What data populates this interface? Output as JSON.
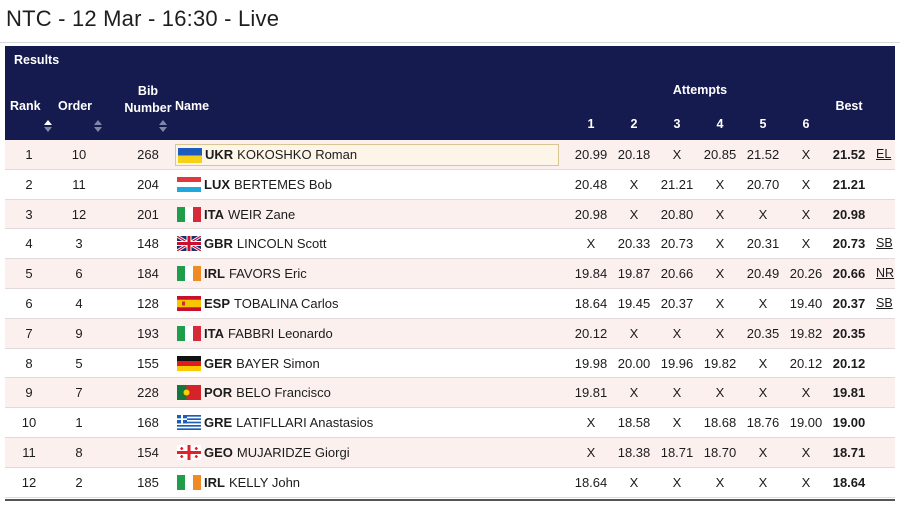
{
  "page": {
    "title": "NTC - 12 Mar - 16:30 - Live"
  },
  "table": {
    "section_label": "Results",
    "headers": {
      "rank": "Rank",
      "order": "Order",
      "bib": "Bib Number",
      "name": "Name",
      "attempts": "Attempts",
      "attempt_numbers": [
        "1",
        "2",
        "3",
        "4",
        "5",
        "6"
      ],
      "best": "Best"
    },
    "rows": [
      {
        "rank": "1",
        "order": "10",
        "bib": "268",
        "noc": "UKR",
        "name": "KOKOSHKO Roman",
        "flag": "ukr",
        "attempts": [
          "20.99",
          "20.18",
          "X",
          "20.85",
          "21.52",
          "X"
        ],
        "best": "21.52",
        "record": "EL"
      },
      {
        "rank": "2",
        "order": "11",
        "bib": "204",
        "noc": "LUX",
        "name": "BERTEMES Bob",
        "flag": "lux",
        "attempts": [
          "20.48",
          "X",
          "21.21",
          "X",
          "20.70",
          "X"
        ],
        "best": "21.21",
        "record": ""
      },
      {
        "rank": "3",
        "order": "12",
        "bib": "201",
        "noc": "ITA",
        "name": "WEIR Zane",
        "flag": "ita",
        "attempts": [
          "20.98",
          "X",
          "20.80",
          "X",
          "X",
          "X"
        ],
        "best": "20.98",
        "record": ""
      },
      {
        "rank": "4",
        "order": "3",
        "bib": "148",
        "noc": "GBR",
        "name": "LINCOLN Scott",
        "flag": "gbr",
        "attempts": [
          "X",
          "20.33",
          "20.73",
          "X",
          "20.31",
          "X"
        ],
        "best": "20.73",
        "record": "SB"
      },
      {
        "rank": "5",
        "order": "6",
        "bib": "184",
        "noc": "IRL",
        "name": "FAVORS Eric",
        "flag": "irl",
        "attempts": [
          "19.84",
          "19.87",
          "20.66",
          "X",
          "20.49",
          "20.26"
        ],
        "best": "20.66",
        "record": "NR"
      },
      {
        "rank": "6",
        "order": "4",
        "bib": "128",
        "noc": "ESP",
        "name": "TOBALINA Carlos",
        "flag": "esp",
        "attempts": [
          "18.64",
          "19.45",
          "20.37",
          "X",
          "X",
          "19.40"
        ],
        "best": "20.37",
        "record": "SB"
      },
      {
        "rank": "7",
        "order": "9",
        "bib": "193",
        "noc": "ITA",
        "name": "FABBRI Leonardo",
        "flag": "ita",
        "attempts": [
          "20.12",
          "X",
          "X",
          "X",
          "20.35",
          "19.82"
        ],
        "best": "20.35",
        "record": ""
      },
      {
        "rank": "8",
        "order": "5",
        "bib": "155",
        "noc": "GER",
        "name": "BAYER Simon",
        "flag": "ger",
        "attempts": [
          "19.98",
          "20.00",
          "19.96",
          "19.82",
          "X",
          "20.12"
        ],
        "best": "20.12",
        "record": ""
      },
      {
        "rank": "9",
        "order": "7",
        "bib": "228",
        "noc": "POR",
        "name": "BELO Francisco",
        "flag": "por",
        "attempts": [
          "19.81",
          "X",
          "X",
          "X",
          "X",
          "X"
        ],
        "best": "19.81",
        "record": ""
      },
      {
        "rank": "10",
        "order": "1",
        "bib": "168",
        "noc": "GRE",
        "name": "LATIFLLARI Anastasios",
        "flag": "gre",
        "attempts": [
          "X",
          "18.58",
          "X",
          "18.68",
          "18.76",
          "19.00"
        ],
        "best": "19.00",
        "record": ""
      },
      {
        "rank": "11",
        "order": "8",
        "bib": "154",
        "noc": "GEO",
        "name": "MUJARIDZE Giorgi",
        "flag": "geo",
        "attempts": [
          "X",
          "18.38",
          "18.71",
          "18.70",
          "X",
          "X"
        ],
        "best": "18.71",
        "record": ""
      },
      {
        "rank": "12",
        "order": "2",
        "bib": "185",
        "noc": "IRL",
        "name": "KELLY John",
        "flag": "irl",
        "attempts": [
          "18.64",
          "X",
          "X",
          "X",
          "X",
          "X"
        ],
        "best": "18.64",
        "record": ""
      }
    ]
  },
  "colors": {
    "header_bg": "#161b4f",
    "row_odd": "#fcf0ef",
    "row_even": "#ffffff"
  }
}
